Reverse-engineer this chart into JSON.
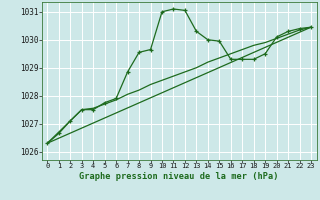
{
  "title": "Graphe pression niveau de la mer (hPa)",
  "bg_color": "#cde8e8",
  "grid_color": "#b0d5d5",
  "line_color": "#1e6b1e",
  "xlim": [
    -0.5,
    23.5
  ],
  "ylim": [
    1025.7,
    1031.35
  ],
  "xticks": [
    0,
    1,
    2,
    3,
    4,
    5,
    6,
    7,
    8,
    9,
    10,
    11,
    12,
    13,
    14,
    15,
    16,
    17,
    18,
    19,
    20,
    21,
    22,
    23
  ],
  "yticks": [
    1026,
    1027,
    1028,
    1029,
    1030,
    1031
  ],
  "main_x": [
    0,
    1,
    2,
    3,
    4,
    5,
    6,
    7,
    8,
    9,
    10,
    11,
    12,
    13,
    14,
    15,
    16,
    17,
    18,
    19,
    20,
    21,
    22,
    23
  ],
  "main_y": [
    1026.3,
    1026.65,
    1027.1,
    1027.5,
    1027.5,
    1027.75,
    1027.9,
    1028.85,
    1029.55,
    1029.65,
    1031.0,
    1031.1,
    1031.05,
    1030.3,
    1030.0,
    1029.95,
    1029.3,
    1029.3,
    1029.3,
    1029.5,
    1030.1,
    1030.3,
    1030.4,
    1030.45
  ],
  "trend1_x": [
    0,
    3,
    4,
    5,
    6,
    7,
    8,
    9,
    10,
    11,
    12,
    13,
    14,
    15,
    16,
    17,
    18,
    19,
    20,
    21,
    22,
    23
  ],
  "trend1_y": [
    1026.3,
    1027.5,
    1027.55,
    1027.7,
    1027.85,
    1028.05,
    1028.2,
    1028.4,
    1028.55,
    1028.7,
    1028.85,
    1029.0,
    1029.2,
    1029.35,
    1029.5,
    1029.65,
    1029.8,
    1029.9,
    1030.05,
    1030.2,
    1030.35,
    1030.45
  ],
  "trend2_x": [
    0,
    23
  ],
  "trend2_y": [
    1026.3,
    1030.45
  ]
}
